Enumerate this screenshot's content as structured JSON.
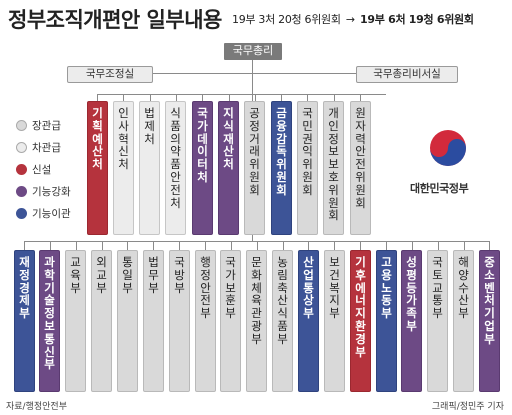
{
  "header": {
    "title": "정부조직개편안 일부내용",
    "subtitle_before": "19부 3처 20청 6위원회",
    "subtitle_arrow": "→",
    "subtitle_after": "19부 6처 19청 6위원회"
  },
  "top": {
    "pm": "국무총리",
    "coordination": "국무조정실",
    "secretariat": "국무총리비서실"
  },
  "legend": [
    {
      "label": "장관급",
      "color": "#d9d9d9"
    },
    {
      "label": "차관급",
      "color": "#ececec"
    },
    {
      "label": "신설",
      "color": "#b5333d"
    },
    {
      "label": "기능강화",
      "color": "#6d4a85"
    },
    {
      "label": "기능이관",
      "color": "#3d5497"
    }
  ],
  "upper_units": [
    {
      "name": "기획예산처",
      "kind": "new"
    },
    {
      "name": "인사혁신처",
      "kind": "vice"
    },
    {
      "name": "법제처",
      "kind": "vice"
    },
    {
      "name": "식품의약품안전처",
      "kind": "vice"
    },
    {
      "name": "국가데이터처",
      "kind": "up"
    },
    {
      "name": "지식재산처",
      "kind": "up"
    },
    {
      "name": "공정거래위원회",
      "kind": "min"
    },
    {
      "name": "금융감독위원회",
      "kind": "move"
    },
    {
      "name": "국민권익위원회",
      "kind": "min"
    },
    {
      "name": "개인정보보호위원회",
      "kind": "min"
    },
    {
      "name": "원자력안전위원회",
      "kind": "min"
    }
  ],
  "ministries": [
    {
      "name": "재정경제부",
      "kind": "move"
    },
    {
      "name": "과학기술정보통신부",
      "kind": "up"
    },
    {
      "name": "교육부",
      "kind": "min"
    },
    {
      "name": "외교부",
      "kind": "min"
    },
    {
      "name": "통일부",
      "kind": "min"
    },
    {
      "name": "법무부",
      "kind": "min"
    },
    {
      "name": "국방부",
      "kind": "min"
    },
    {
      "name": "행정안전부",
      "kind": "min"
    },
    {
      "name": "국가보훈부",
      "kind": "min"
    },
    {
      "name": "문화체육관광부",
      "kind": "min"
    },
    {
      "name": "농림축산식품부",
      "kind": "min"
    },
    {
      "name": "산업통상부",
      "kind": "move"
    },
    {
      "name": "보건복지부",
      "kind": "min"
    },
    {
      "name": "기후에너지환경부",
      "kind": "new"
    },
    {
      "name": "고용노동부",
      "kind": "move"
    },
    {
      "name": "성평등가족부",
      "kind": "up"
    },
    {
      "name": "국토교통부",
      "kind": "min"
    },
    {
      "name": "해양수산부",
      "kind": "min"
    },
    {
      "name": "중소벤처기업부",
      "kind": "up"
    }
  ],
  "emblem_text": "대한민국정부",
  "source": "자료/행정안전부",
  "credit": "그래픽/정민주 기자"
}
